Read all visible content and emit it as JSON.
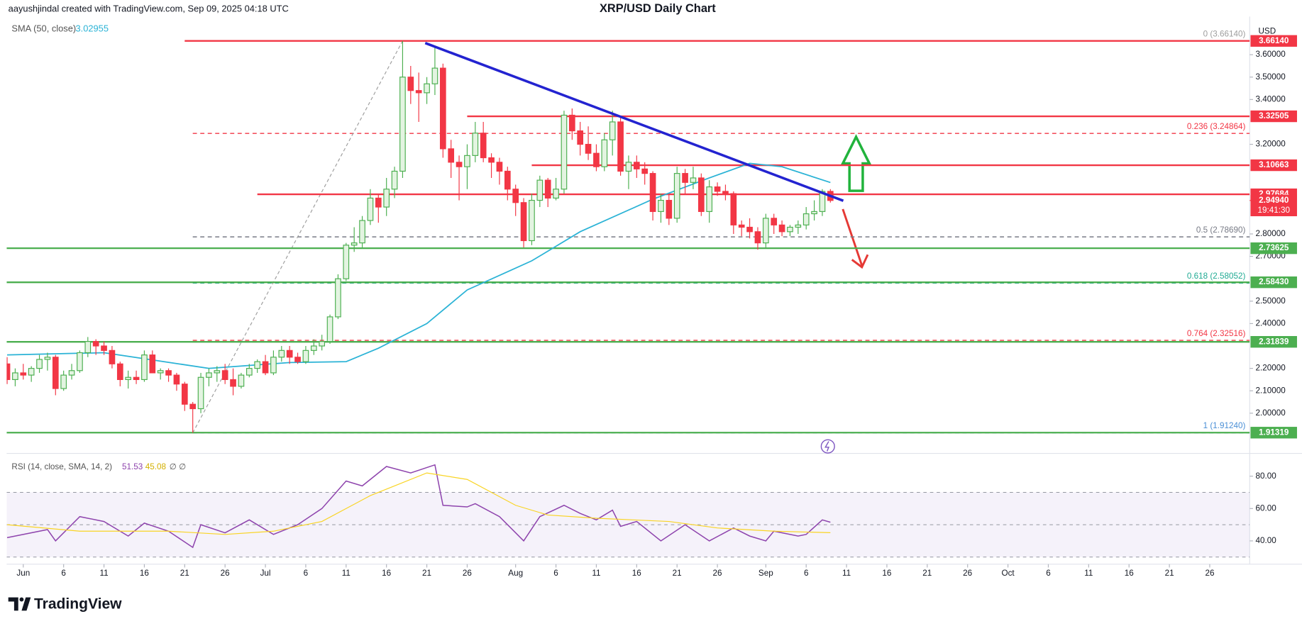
{
  "chart_data": [
    {
      "type": "candlestick",
      "title": "XRP/USD Daily Chart",
      "attribution": "aayushjindal created with TradingView.com, Sep 09, 2025 04:18 UTC",
      "axis_label": "USD",
      "brand": "TradingView",
      "grid": false,
      "up_color": "#4caf50",
      "up_fill": "#e3f4e1",
      "down_color": "#f23645",
      "xlim": [
        -2.06,
        151.95
      ],
      "ylim": [
        1.826,
        3.77
      ],
      "xticks": [
        {
          "value": 0,
          "label": "Jun"
        },
        {
          "value": 5,
          "label": "6"
        },
        {
          "value": 10,
          "label": "11"
        },
        {
          "value": 15,
          "label": "16"
        },
        {
          "value": 20,
          "label": "21"
        },
        {
          "value": 25,
          "label": "26"
        },
        {
          "value": 30,
          "label": "Jul"
        },
        {
          "value": 35,
          "label": "6"
        },
        {
          "value": 40,
          "label": "11"
        },
        {
          "value": 45,
          "label": "16"
        },
        {
          "value": 50,
          "label": "21"
        },
        {
          "value": 55,
          "label": "26"
        },
        {
          "value": 61,
          "label": "Aug"
        },
        {
          "value": 66,
          "label": "6"
        },
        {
          "value": 71,
          "label": "11"
        },
        {
          "value": 76,
          "label": "16"
        },
        {
          "value": 81,
          "label": "21"
        },
        {
          "value": 86,
          "label": "26"
        },
        {
          "value": 92,
          "label": "Sep"
        },
        {
          "value": 97,
          "label": "6"
        },
        {
          "value": 102,
          "label": "11"
        },
        {
          "value": 107,
          "label": "16"
        },
        {
          "value": 112,
          "label": "21"
        },
        {
          "value": 117,
          "label": "26"
        },
        {
          "value": 122,
          "label": "Oct"
        },
        {
          "value": 127,
          "label": "6"
        },
        {
          "value": 132,
          "label": "11"
        },
        {
          "value": 137,
          "label": "16"
        },
        {
          "value": 142,
          "label": "21"
        },
        {
          "value": 147,
          "label": "26"
        }
      ],
      "yticks": [
        {
          "value": 2.0,
          "label": "2.00000"
        },
        {
          "value": 2.1,
          "label": "2.10000"
        },
        {
          "value": 2.2,
          "label": "2.20000"
        },
        {
          "value": 2.4,
          "label": "2.40000"
        },
        {
          "value": 2.5,
          "label": "2.50000"
        },
        {
          "value": 2.7,
          "label": "2.70000"
        },
        {
          "value": 2.8,
          "label": "2.80000"
        },
        {
          "value": 3.2,
          "label": "3.20000"
        },
        {
          "value": 3.4,
          "label": "3.40000"
        },
        {
          "value": 3.5,
          "label": "3.50000"
        },
        {
          "value": 3.6,
          "label": "3.60000"
        }
      ],
      "x": [
        -2,
        -1,
        0,
        1,
        2,
        3,
        4,
        5,
        6,
        7,
        8,
        9,
        10,
        11,
        12,
        13,
        14,
        15,
        16,
        17,
        18,
        19,
        20,
        21,
        22,
        23,
        24,
        25,
        26,
        27,
        28,
        29,
        30,
        31,
        32,
        33,
        34,
        35,
        36,
        37,
        38,
        39,
        40,
        41,
        42,
        43,
        44,
        45,
        46,
        47,
        48,
        49,
        50,
        51,
        52,
        53,
        54,
        55,
        56,
        57,
        58,
        59,
        60,
        61,
        62,
        63,
        64,
        65,
        66,
        67,
        68,
        69,
        70,
        71,
        72,
        73,
        74,
        75,
        76,
        77,
        78,
        79,
        80,
        81,
        82,
        83,
        84,
        85,
        86,
        87,
        88,
        89,
        90,
        91,
        92,
        93,
        94,
        95,
        96,
        97,
        98,
        99,
        100
      ],
      "open": [
        2.22,
        2.15,
        2.18,
        2.17,
        2.2,
        2.24,
        2.25,
        2.11,
        2.17,
        2.19,
        2.27,
        2.32,
        2.3,
        2.28,
        2.22,
        2.15,
        2.16,
        2.15,
        2.26,
        2.18,
        2.19,
        2.17,
        2.13,
        2.04,
        2.02,
        2.16,
        2.18,
        2.19,
        2.15,
        2.12,
        2.17,
        2.2,
        2.23,
        2.18,
        2.25,
        2.28,
        2.25,
        2.23,
        2.28,
        2.3,
        2.32,
        2.43,
        2.6,
        2.75,
        2.76,
        2.86,
        2.96,
        2.92,
        3.0,
        3.08,
        3.5,
        3.44,
        3.43,
        3.47,
        3.54,
        3.18,
        3.12,
        3.1,
        3.15,
        3.25,
        3.14,
        3.12,
        3.08,
        3.0,
        2.94,
        2.77,
        2.95,
        3.04,
        2.96,
        3.0,
        3.33,
        3.26,
        3.2,
        3.16,
        3.1,
        3.22,
        3.3,
        3.08,
        3.12,
        3.09,
        3.07,
        2.9,
        2.95,
        2.87,
        3.07,
        3.03,
        3.05,
        2.9,
        3.01,
        2.99,
        2.98,
        2.84,
        2.83,
        2.81,
        2.76,
        2.87,
        2.84,
        2.81,
        2.83,
        2.84,
        2.89,
        2.9,
        2.99
      ],
      "high": [
        2.25,
        2.2,
        2.22,
        2.21,
        2.26,
        2.27,
        2.26,
        2.19,
        2.22,
        2.28,
        2.34,
        2.33,
        2.32,
        2.3,
        2.23,
        2.19,
        2.19,
        2.28,
        2.28,
        2.2,
        2.2,
        2.18,
        2.14,
        2.05,
        2.18,
        2.2,
        2.21,
        2.22,
        2.2,
        2.18,
        2.22,
        2.24,
        2.26,
        2.28,
        2.3,
        2.3,
        2.27,
        2.3,
        2.33,
        2.35,
        2.44,
        2.62,
        2.76,
        2.83,
        2.88,
        3.0,
        2.98,
        3.05,
        3.1,
        3.6614,
        3.55,
        3.52,
        3.5,
        3.64,
        3.56,
        3.22,
        3.15,
        3.2,
        3.3,
        3.3,
        3.16,
        3.14,
        3.1,
        3.02,
        2.96,
        2.98,
        3.06,
        3.05,
        3.05,
        3.35,
        3.36,
        3.3,
        3.28,
        3.2,
        3.25,
        3.35,
        3.32,
        3.15,
        3.15,
        3.12,
        3.08,
        2.98,
        2.98,
        3.1,
        3.09,
        3.1,
        3.07,
        3.04,
        3.03,
        3.02,
        2.99,
        2.86,
        2.87,
        2.83,
        2.89,
        2.89,
        2.86,
        2.84,
        2.86,
        2.92,
        2.95,
        3.0,
        3.0
      ],
      "low": [
        2.13,
        2.12,
        2.15,
        2.14,
        2.18,
        2.19,
        2.08,
        2.1,
        2.15,
        2.18,
        2.25,
        2.26,
        2.26,
        2.2,
        2.12,
        2.11,
        2.13,
        2.14,
        2.18,
        2.15,
        2.14,
        2.1,
        2.01,
        1.9124,
        2.0,
        2.12,
        2.14,
        2.13,
        2.08,
        2.11,
        2.16,
        2.18,
        2.17,
        2.17,
        2.23,
        2.22,
        2.22,
        2.22,
        2.26,
        2.28,
        2.31,
        2.42,
        2.59,
        2.72,
        2.74,
        2.84,
        2.85,
        2.88,
        2.96,
        3.05,
        3.38,
        3.3,
        3.38,
        3.42,
        3.14,
        3.05,
        2.95,
        3.0,
        3.12,
        3.12,
        3.05,
        3.02,
        2.95,
        2.88,
        2.74,
        2.75,
        2.92,
        2.92,
        2.95,
        2.98,
        3.22,
        3.15,
        3.13,
        3.08,
        3.08,
        3.15,
        3.06,
        3.0,
        3.05,
        3.02,
        2.86,
        2.85,
        2.84,
        2.85,
        2.98,
        3.0,
        2.88,
        2.85,
        2.97,
        2.95,
        2.8,
        2.79,
        2.78,
        2.73,
        2.74,
        2.8,
        2.79,
        2.79,
        2.8,
        2.82,
        2.86,
        2.88,
        2.94
      ],
      "close": [
        2.15,
        2.18,
        2.17,
        2.2,
        2.24,
        2.25,
        2.11,
        2.17,
        2.19,
        2.27,
        2.32,
        2.3,
        2.28,
        2.22,
        2.15,
        2.16,
        2.15,
        2.26,
        2.18,
        2.19,
        2.17,
        2.13,
        2.04,
        2.02,
        2.16,
        2.18,
        2.19,
        2.15,
        2.12,
        2.17,
        2.2,
        2.23,
        2.18,
        2.25,
        2.28,
        2.25,
        2.23,
        2.28,
        2.3,
        2.32,
        2.43,
        2.6,
        2.75,
        2.76,
        2.86,
        2.96,
        2.92,
        3.0,
        3.08,
        3.5,
        3.44,
        3.43,
        3.47,
        3.54,
        3.18,
        3.12,
        3.1,
        3.15,
        3.25,
        3.14,
        3.12,
        3.08,
        3.0,
        2.94,
        2.77,
        2.95,
        3.04,
        2.96,
        3.0,
        3.33,
        3.26,
        3.2,
        3.16,
        3.1,
        3.22,
        3.3,
        3.08,
        3.12,
        3.09,
        3.07,
        2.9,
        2.95,
        2.87,
        3.07,
        3.03,
        3.05,
        2.9,
        3.01,
        2.99,
        2.98,
        2.84,
        2.83,
        2.81,
        2.76,
        2.87,
        2.84,
        2.81,
        2.83,
        2.84,
        2.89,
        2.9,
        2.99,
        2.9494
      ],
      "sma": {
        "name": "SMA (50, close)",
        "color": "#2bb3d6",
        "last_value": 3.02955,
        "x": [
          -2,
          10,
          23,
          33,
          40,
          44,
          50,
          55,
          63,
          69,
          78,
          85,
          90,
          94,
          100
        ],
        "values": [
          2.26,
          2.27,
          2.2,
          2.226,
          2.23,
          2.29,
          2.4,
          2.55,
          2.68,
          2.81,
          2.955,
          3.05,
          3.115,
          3.1,
          3.02955
        ]
      },
      "trendline": {
        "color": "#2323d0",
        "x": [
          49.8,
          101.6
        ],
        "values": [
          3.652,
          2.948
        ]
      },
      "fib_anchor": {
        "color": "#9e9e9e",
        "x": [
          21,
          47
        ],
        "values": [
          1.9124,
          3.6614
        ]
      },
      "levels": [
        {
          "value": 3.6614,
          "label": "3.66140",
          "color": "#f23645",
          "x_start": 20
        },
        {
          "value": 3.32505,
          "label": "3.32505",
          "color": "#f23645",
          "x_start": 55
        },
        {
          "value": 3.10663,
          "label": "3.10663",
          "color": "#f23645",
          "x_start": 63
        },
        {
          "value": 2.97684,
          "label": "2.97684",
          "color": "#f23645",
          "x_start": 29
        },
        {
          "value": 2.73625,
          "label": "2.73625",
          "color": "#4caf50",
          "x_start": -2.06
        },
        {
          "value": 2.5843,
          "label": "2.58430",
          "color": "#4caf50",
          "x_start": -2.06
        },
        {
          "value": 2.31839,
          "label": "2.31839",
          "color": "#4caf50",
          "x_start": -2.06
        },
        {
          "value": 1.91319,
          "label": "1.91319",
          "color": "#4caf50",
          "x_start": -2.06
        }
      ],
      "fib": [
        {
          "value": 3.6614,
          "label": "0 (3.66140)",
          "color": "#9e9e9e",
          "x_start": 21
        },
        {
          "value": 3.24864,
          "label": "0.236 (3.24864)",
          "color": "#f23645",
          "x_start": 21
        },
        {
          "value": 2.7869,
          "label": "0.5 (2.78690)",
          "color": "#787b86",
          "x_start": 21
        },
        {
          "value": 2.58052,
          "label": "0.618 (2.58052)",
          "color": "#22ab94",
          "x_start": 21
        },
        {
          "value": 2.32516,
          "label": "0.764 (2.32516)",
          "color": "#f23645",
          "x_start": 21
        },
        {
          "value": 1.9124,
          "label": "1 (1.91240)",
          "color": "#4a8fd6",
          "x_start": 21
        }
      ],
      "last_price": {
        "value": 2.9494,
        "label": "2.94940",
        "countdown": "19:41:30",
        "color": "#f23645"
      }
    },
    {
      "type": "line",
      "title": "RSI (14, close, SMA, 14, 2)",
      "legend_extra": "∅ ∅",
      "xlim": [
        -2.06,
        151.95
      ],
      "ylim": [
        25.6,
        93.3
      ],
      "yticks": [
        {
          "value": 40,
          "label": "40.00"
        },
        {
          "value": 60,
          "label": "60.00"
        },
        {
          "value": 80,
          "label": "80.00"
        }
      ],
      "bands": [
        70,
        50,
        30
      ],
      "band_color": "#7e57c2",
      "series": [
        {
          "color": "#8e44ad",
          "last_value": 51.53,
          "x": [
            -2,
            3,
            4,
            7,
            10,
            13,
            15,
            18,
            21,
            22,
            25,
            28,
            31,
            34,
            37,
            40,
            42,
            45,
            48,
            51,
            52,
            55,
            56,
            59,
            62,
            64,
            67,
            69,
            71,
            73,
            74,
            76,
            79,
            82,
            85,
            88,
            90,
            92,
            93,
            96,
            97,
            99,
            100
          ],
          "values": [
            42,
            47,
            40,
            55,
            52,
            43,
            51,
            46,
            36,
            50,
            45,
            53,
            44,
            50,
            60,
            77,
            74,
            86,
            82,
            87,
            62,
            61,
            63,
            55,
            40,
            55,
            62,
            57,
            53,
            59,
            49,
            52,
            40,
            50,
            40,
            48,
            43,
            40,
            46,
            43,
            44,
            53,
            51.53
          ]
        },
        {
          "color": "#f9d423",
          "last_value": 45.08,
          "x": [
            -2,
            7,
            18,
            25,
            31,
            37,
            43,
            50,
            55,
            61,
            65,
            71,
            80,
            86,
            93,
            100
          ],
          "values": [
            50,
            46,
            46,
            44,
            46,
            52,
            68,
            82,
            78,
            62,
            56,
            54,
            52,
            48,
            46,
            45.08
          ]
        }
      ]
    }
  ]
}
